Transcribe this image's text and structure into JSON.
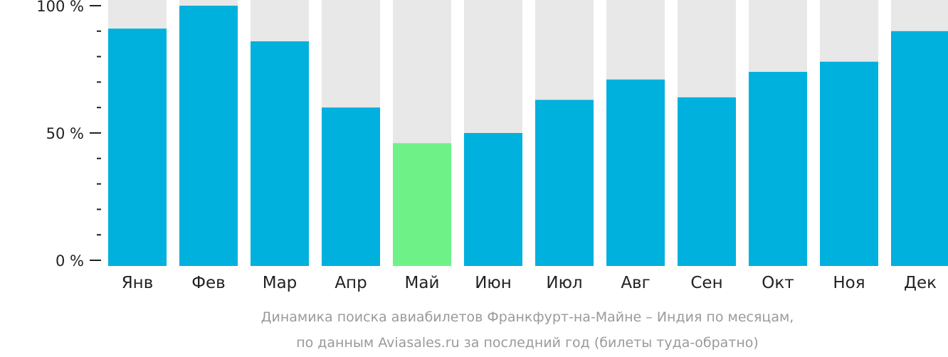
{
  "chart_data": {
    "type": "bar",
    "title": "Динамика поиска авиабилетов Франкфурт-на-Майне – Индия по месяцам,",
    "subtitle": "по данным Aviasales.ru за последний год (билеты туда-обратно)",
    "xlabel": "",
    "ylabel": "",
    "ylim": [
      0,
      100
    ],
    "y_ticks": [
      {
        "value": 100,
        "label": "100 %"
      },
      {
        "value": 50,
        "label": "50 %"
      },
      {
        "value": 0,
        "label": "0 %"
      }
    ],
    "minor_tick_step": 10,
    "categories": [
      "Янв",
      "Фев",
      "Мар",
      "Апр",
      "Май",
      "Июн",
      "Июл",
      "Авг",
      "Сен",
      "Окт",
      "Ноя",
      "Дек"
    ],
    "values": [
      91,
      100,
      86,
      60,
      46,
      50,
      63,
      71,
      64,
      74,
      78,
      90
    ],
    "highlight_index": 4,
    "colors": {
      "bar": "#00b0dd",
      "highlight": "#6ef287",
      "background_bar": "#e8e8e8",
      "axis": "#222222"
    }
  }
}
